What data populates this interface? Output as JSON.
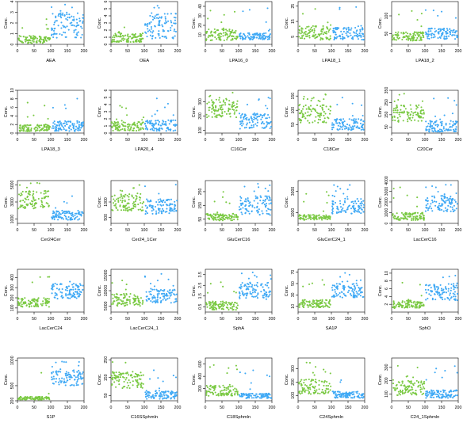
{
  "chart_data": {
    "type": "scatter",
    "layout": "small-multiples",
    "rows": 5,
    "cols": 5,
    "ylabel": "Conc.",
    "xlim": [
      0,
      200
    ],
    "xticks": [
      0,
      50,
      100,
      150,
      200
    ],
    "colors": {
      "group1": "#7ac943",
      "group2": "#3fa9f5"
    },
    "panels": [
      {
        "label": "AEA",
        "ylim": [
          0,
          4
        ],
        "yticks": [
          0,
          1,
          2,
          3,
          4
        ],
        "g1": [
          0.1,
          0.8
        ],
        "g2": [
          0.6,
          3.0
        ]
      },
      {
        "label": "OEA",
        "ylim": [
          0,
          6
        ],
        "yticks": [
          0,
          1,
          2,
          3,
          4,
          5,
          6
        ],
        "g1": [
          0.3,
          1.6
        ],
        "g2": [
          0.8,
          4.5
        ]
      },
      {
        "label": "LPA16_0",
        "ylim": [
          0,
          45
        ],
        "yticks": [
          10,
          20,
          30,
          40
        ],
        "g1": [
          4,
          16
        ],
        "g2": [
          5,
          12
        ]
      },
      {
        "label": "LPA18_1",
        "ylim": [
          0,
          28
        ],
        "yticks": [
          5,
          15,
          25
        ],
        "g1": [
          3,
          12
        ],
        "g2": [
          3,
          11
        ]
      },
      {
        "label": "LPA18_2",
        "ylim": [
          20,
          140
        ],
        "yticks": [
          50,
          100
        ],
        "g1": [
          30,
          55
        ],
        "g2": [
          35,
          65
        ]
      },
      {
        "label": "LPA18_3",
        "ylim": [
          0,
          10
        ],
        "yticks": [
          0,
          2,
          4,
          6,
          8,
          10
        ],
        "g1": [
          0.4,
          2.0
        ],
        "g2": [
          0.4,
          2.8
        ]
      },
      {
        "label": "LPA20_4",
        "ylim": [
          0,
          6
        ],
        "yticks": [
          0,
          1,
          2,
          3,
          4,
          5,
          6
        ],
        "g1": [
          0.3,
          1.6
        ],
        "g2": [
          0.3,
          1.8
        ]
      },
      {
        "label": "C16Cer",
        "ylim": [
          80,
          380
        ],
        "yticks": [
          100,
          200,
          300
        ],
        "g1": [
          190,
          320
        ],
        "g2": [
          110,
          220
        ]
      },
      {
        "label": "C18Cer",
        "ylim": [
          20,
          170
        ],
        "yticks": [
          50,
          100,
          150
        ],
        "g1": [
          55,
          120
        ],
        "g2": [
          30,
          70
        ]
      },
      {
        "label": "C20Cer",
        "ylim": [
          0,
          350
        ],
        "yticks": [
          50,
          150,
          250,
          350
        ],
        "g1": [
          90,
          230
        ],
        "g2": [
          10,
          100
        ]
      },
      {
        "label": "Cer24Cer",
        "ylim": [
          500,
          5500
        ],
        "yticks": [
          1000,
          3000,
          5000
        ],
        "g1": [
          2200,
          4300
        ],
        "g2": [
          900,
          2000
        ]
      },
      {
        "label": "Cer24_1Cer",
        "ylim": [
          300,
          1700
        ],
        "yticks": [
          500,
          1000
        ],
        "g1": [
          700,
          1300
        ],
        "g2": [
          600,
          1100
        ]
      },
      {
        "label": "GluCerC16",
        "ylim": [
          20,
          330
        ],
        "yticks": [
          50,
          150,
          250
        ],
        "g1": [
          40,
          90
        ],
        "g2": [
          80,
          220
        ]
      },
      {
        "label": "GluCerC24_1",
        "ylim": [
          0,
          4000
        ],
        "yticks": [
          1000,
          3000
        ],
        "g1": [
          300,
          800
        ],
        "g2": [
          900,
          2100
        ]
      },
      {
        "label": "LacCerC16",
        "ylim": [
          0,
          4000
        ],
        "yticks": [
          0,
          1000,
          2000,
          3000,
          4000
        ],
        "g1": [
          300,
          1000
        ],
        "g2": [
          1100,
          2600
        ]
      },
      {
        "label": "LacCerC24",
        "ylim": [
          60,
          480
        ],
        "yticks": [
          100,
          200,
          300,
          400
        ],
        "g1": [
          110,
          200
        ],
        "g2": [
          190,
          340
        ]
      },
      {
        "label": "LacCerC24_1",
        "ylim": [
          3000,
          17000
        ],
        "yticks": [
          5000,
          10000,
          15000
        ],
        "g1": [
          5000,
          9000
        ],
        "g2": [
          6000,
          10500
        ]
      },
      {
        "label": "SphA",
        "ylim": [
          0,
          4.0
        ],
        "yticks": [
          0.5,
          1.5,
          2.5,
          3.5
        ],
        "g1": [
          0.2,
          1.0
        ],
        "g2": [
          1.2,
          2.8
        ]
      },
      {
        "label": "SA1P",
        "ylim": [
          0,
          75
        ],
        "yticks": [
          10,
          30,
          50,
          70
        ],
        "g1": [
          8,
          22
        ],
        "g2": [
          25,
          50
        ]
      },
      {
        "label": "SphO",
        "ylim": [
          0,
          11
        ],
        "yticks": [
          2,
          4,
          6,
          8,
          10
        ],
        "g1": [
          1.0,
          3.0
        ],
        "g2": [
          3.0,
          7.0
        ]
      },
      {
        "label": "S1P",
        "ylim": [
          200,
          1050
        ],
        "yticks": [
          200,
          500,
          1000
        ],
        "g1": [
          220,
          280
        ],
        "g2": [
          500,
          800
        ]
      },
      {
        "label": "C16SSphmln",
        "ylim": [
          20,
          260
        ],
        "yticks": [
          50,
          150,
          250
        ],
        "g1": [
          90,
          180
        ],
        "g2": [
          30,
          80
        ]
      },
      {
        "label": "C18Sphmln",
        "ylim": [
          0,
          700
        ],
        "yticks": [
          200,
          400,
          600
        ],
        "g1": [
          80,
          250
        ],
        "g2": [
          40,
          120
        ]
      },
      {
        "label": "C24Sphmln",
        "ylim": [
          60,
          380
        ],
        "yticks": [
          100,
          200,
          300
        ],
        "g1": [
          110,
          220
        ],
        "g2": [
          80,
          130
        ]
      },
      {
        "label": "C24_1Sphmln",
        "ylim": [
          50,
          370
        ],
        "yticks": [
          100,
          200,
          300
        ],
        "g1": [
          90,
          200
        ],
        "g2": [
          70,
          130
        ]
      }
    ]
  }
}
